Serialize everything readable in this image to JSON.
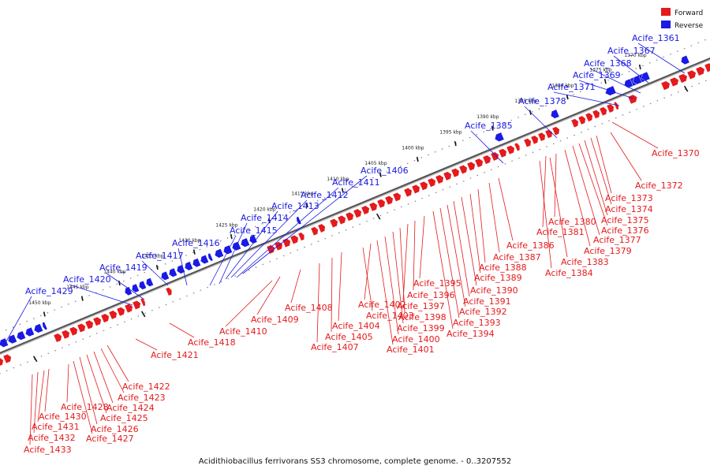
{
  "caption": "Acidithiobacillus ferrivorans SS3 chromosome, complete genome. - 0..3207552",
  "legend": [
    {
      "label": "Forward",
      "color": "#e41a1c"
    },
    {
      "label": "Reverse",
      "color": "#1a1ae4"
    }
  ],
  "colors": {
    "forward": "#e41a1c",
    "reverse": "#1a1ae4",
    "backbone": "#555555"
  },
  "ticks": [
    "1370 kbp",
    "1375 kbp",
    "1380 kbp",
    "1385 kbp",
    "1390 kbp",
    "1395 kbp",
    "1400 kbp",
    "1405 kbp",
    "1410 kbp",
    "1415 kbp",
    "1420 kbp",
    "1425 kbp",
    "1430 kbp",
    "1435 kbp",
    "1440 kbp",
    "1445 kbp",
    "1450 kbp"
  ],
  "reverse_genes": [
    "Acife_1361",
    "Acife_1367",
    "Acife_1368",
    "Acife_1369",
    "Acife_1371",
    "Acife_1378",
    "Acife_1385",
    "Acife_1406",
    "Acife_1411",
    "Acife_1412",
    "Acife_1413",
    "Acife_1414",
    "Acife_1415",
    "Acife_1416",
    "Acife_1417",
    "Acife_1419",
    "Acife_1420",
    "Acife_1429"
  ],
  "forward_genes": [
    "Acife_1370",
    "Acife_1372",
    "Acife_1373",
    "Acife_1374",
    "Acife_1375",
    "Acife_1376",
    "Acife_1377",
    "Acife_1379",
    "Acife_1380",
    "Acife_1381",
    "Acife_1383",
    "Acife_1384",
    "Acife_1386",
    "Acife_1387",
    "Acife_1388",
    "Acife_1389",
    "Acife_1390",
    "Acife_1391",
    "Acife_1392",
    "Acife_1393",
    "Acife_1394",
    "Acife_1395",
    "Acife_1396",
    "Acife_1397",
    "Acife_1398",
    "Acife_1399",
    "Acife_1400",
    "Acife_1401",
    "Acife_1402",
    "Acife_1403",
    "Acife_1404",
    "Acife_1405",
    "Acife_1407",
    "Acife_1408",
    "Acife_1409",
    "Acife_1410",
    "Acife_1418",
    "Acife_1421",
    "Acife_1422",
    "Acife_1423",
    "Acife_1424",
    "Acife_1425",
    "Acife_1426",
    "Acife_1427",
    "Acife_1428",
    "Acife_1430",
    "Acife_1431",
    "Acife_1432",
    "Acife_1433"
  ]
}
